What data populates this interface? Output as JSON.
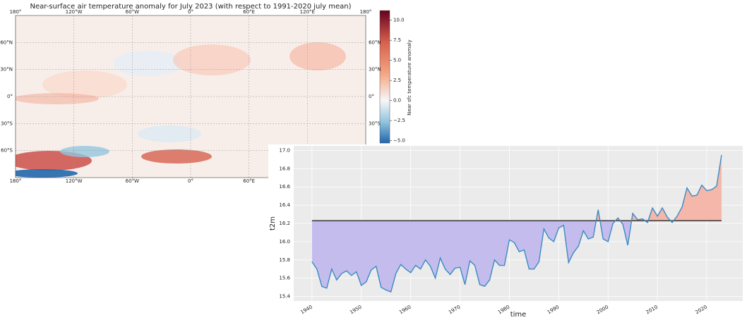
{
  "chart_data": [
    {
      "type": "map",
      "title": "Near-surface air temperature anomaly for July 2023 (with respect to 1991-2020 july mean)",
      "xlim": [
        -180,
        180
      ],
      "ylim": [
        -90,
        90
      ],
      "xticks": [
        {
          "value": -180,
          "label": "180°"
        },
        {
          "value": -120,
          "label": "120°W"
        },
        {
          "value": -60,
          "label": "60°W"
        },
        {
          "value": 0,
          "label": "0°"
        },
        {
          "value": 60,
          "label": "60°E"
        },
        {
          "value": 120,
          "label": "120°E"
        },
        {
          "value": 180,
          "label": "180°"
        }
      ],
      "yticks": [
        {
          "value": 60,
          "label": "60°N"
        },
        {
          "value": 30,
          "label": "30°N"
        },
        {
          "value": 0,
          "label": "0°"
        },
        {
          "value": -30,
          "label": "30°S"
        },
        {
          "value": -60,
          "label": "60°S"
        }
      ],
      "colorbar_label": "Near sfc temperature anomaly",
      "clim": [
        -5.3,
        11.2
      ],
      "cticks": [
        {
          "value": -5,
          "label": "−5.0"
        },
        {
          "value": -2.5,
          "label": "−2.5"
        },
        {
          "value": 0,
          "label": "0.0"
        },
        {
          "value": 2.5,
          "label": "2.5"
        },
        {
          "value": 5,
          "label": "5.0"
        },
        {
          "value": 7.5,
          "label": "7.5"
        },
        {
          "value": 10,
          "label": "10.0"
        }
      ]
    },
    {
      "type": "line",
      "xlabel": "time",
      "ylabel": "t2m",
      "xlim": [
        1936.3,
        2027.3
      ],
      "ylim": [
        15.35,
        17.05
      ],
      "xticks": [
        1940,
        1950,
        1960,
        1970,
        1980,
        1990,
        2000,
        2010,
        2020
      ],
      "yticks": [
        15.4,
        15.6,
        15.8,
        {
          "value": 16,
          "label": "16.0"
        },
        16.2,
        16.4,
        16.6,
        16.8,
        {
          "value": 17,
          "label": "17.0"
        }
      ],
      "grid": true,
      "color": "#3b8bc2",
      "fill_above": "#f4b7aa",
      "fill_below": "#c5bcee",
      "mean_color": "#333333",
      "mean": 16.23,
      "x": [
        1940,
        1941,
        1942,
        1943,
        1944,
        1945,
        1946,
        1947,
        1948,
        1949,
        1950,
        1951,
        1952,
        1953,
        1954,
        1955,
        1956,
        1957,
        1958,
        1959,
        1960,
        1961,
        1962,
        1963,
        1964,
        1965,
        1966,
        1967,
        1968,
        1969,
        1970,
        1971,
        1972,
        1973,
        1974,
        1975,
        1976,
        1977,
        1978,
        1979,
        1980,
        1981,
        1982,
        1983,
        1984,
        1985,
        1986,
        1987,
        1988,
        1989,
        1990,
        1991,
        1992,
        1993,
        1994,
        1995,
        1996,
        1997,
        1998,
        1999,
        2000,
        2001,
        2002,
        2003,
        2004,
        2005,
        2006,
        2007,
        2008,
        2009,
        2010,
        2011,
        2012,
        2013,
        2014,
        2015,
        2016,
        2017,
        2018,
        2019,
        2020,
        2021,
        2022,
        2023
      ],
      "values": [
        15.78,
        15.7,
        15.51,
        15.49,
        15.7,
        15.58,
        15.65,
        15.68,
        15.63,
        15.67,
        15.52,
        15.56,
        15.69,
        15.73,
        15.5,
        15.47,
        15.45,
        15.65,
        15.75,
        15.7,
        15.66,
        15.74,
        15.7,
        15.8,
        15.73,
        15.6,
        15.82,
        15.7,
        15.64,
        15.71,
        15.72,
        15.53,
        15.79,
        15.74,
        15.53,
        15.51,
        15.58,
        15.8,
        15.74,
        15.74,
        16.02,
        15.99,
        15.89,
        15.91,
        15.7,
        15.7,
        15.78,
        16.14,
        16.04,
        16.0,
        16.15,
        16.18,
        15.77,
        15.88,
        15.95,
        16.12,
        16.03,
        16.05,
        16.35,
        16.03,
        16.0,
        16.2,
        16.26,
        16.19,
        15.96,
        16.31,
        16.24,
        16.25,
        16.21,
        16.37,
        16.28,
        16.37,
        16.27,
        16.21,
        16.28,
        16.38,
        16.59,
        16.5,
        16.51,
        16.62,
        16.56,
        16.57,
        16.61,
        16.95
      ]
    }
  ]
}
